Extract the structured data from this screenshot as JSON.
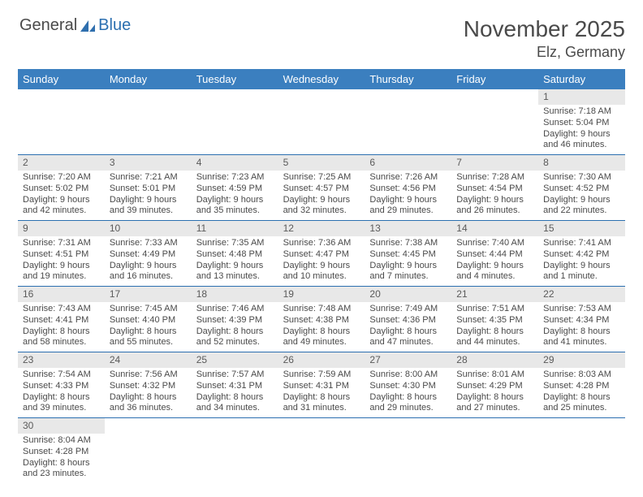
{
  "logo": {
    "text1": "General",
    "text2": "Blue"
  },
  "title": "November 2025",
  "location": "Elz, Germany",
  "dayNames": [
    "Sunday",
    "Monday",
    "Tuesday",
    "Wednesday",
    "Thursday",
    "Friday",
    "Saturday"
  ],
  "colors": {
    "headerBg": "#3b7fbf",
    "dayNumBg": "#e8e8e8",
    "rule": "#2b6fb0"
  },
  "weeks": [
    [
      null,
      null,
      null,
      null,
      null,
      null,
      {
        "n": "1",
        "sr": "Sunrise: 7:18 AM",
        "ss": "Sunset: 5:04 PM",
        "d1": "Daylight: 9 hours",
        "d2": "and 46 minutes."
      }
    ],
    [
      {
        "n": "2",
        "sr": "Sunrise: 7:20 AM",
        "ss": "Sunset: 5:02 PM",
        "d1": "Daylight: 9 hours",
        "d2": "and 42 minutes."
      },
      {
        "n": "3",
        "sr": "Sunrise: 7:21 AM",
        "ss": "Sunset: 5:01 PM",
        "d1": "Daylight: 9 hours",
        "d2": "and 39 minutes."
      },
      {
        "n": "4",
        "sr": "Sunrise: 7:23 AM",
        "ss": "Sunset: 4:59 PM",
        "d1": "Daylight: 9 hours",
        "d2": "and 35 minutes."
      },
      {
        "n": "5",
        "sr": "Sunrise: 7:25 AM",
        "ss": "Sunset: 4:57 PM",
        "d1": "Daylight: 9 hours",
        "d2": "and 32 minutes."
      },
      {
        "n": "6",
        "sr": "Sunrise: 7:26 AM",
        "ss": "Sunset: 4:56 PM",
        "d1": "Daylight: 9 hours",
        "d2": "and 29 minutes."
      },
      {
        "n": "7",
        "sr": "Sunrise: 7:28 AM",
        "ss": "Sunset: 4:54 PM",
        "d1": "Daylight: 9 hours",
        "d2": "and 26 minutes."
      },
      {
        "n": "8",
        "sr": "Sunrise: 7:30 AM",
        "ss": "Sunset: 4:52 PM",
        "d1": "Daylight: 9 hours",
        "d2": "and 22 minutes."
      }
    ],
    [
      {
        "n": "9",
        "sr": "Sunrise: 7:31 AM",
        "ss": "Sunset: 4:51 PM",
        "d1": "Daylight: 9 hours",
        "d2": "and 19 minutes."
      },
      {
        "n": "10",
        "sr": "Sunrise: 7:33 AM",
        "ss": "Sunset: 4:49 PM",
        "d1": "Daylight: 9 hours",
        "d2": "and 16 minutes."
      },
      {
        "n": "11",
        "sr": "Sunrise: 7:35 AM",
        "ss": "Sunset: 4:48 PM",
        "d1": "Daylight: 9 hours",
        "d2": "and 13 minutes."
      },
      {
        "n": "12",
        "sr": "Sunrise: 7:36 AM",
        "ss": "Sunset: 4:47 PM",
        "d1": "Daylight: 9 hours",
        "d2": "and 10 minutes."
      },
      {
        "n": "13",
        "sr": "Sunrise: 7:38 AM",
        "ss": "Sunset: 4:45 PM",
        "d1": "Daylight: 9 hours",
        "d2": "and 7 minutes."
      },
      {
        "n": "14",
        "sr": "Sunrise: 7:40 AM",
        "ss": "Sunset: 4:44 PM",
        "d1": "Daylight: 9 hours",
        "d2": "and 4 minutes."
      },
      {
        "n": "15",
        "sr": "Sunrise: 7:41 AM",
        "ss": "Sunset: 4:42 PM",
        "d1": "Daylight: 9 hours",
        "d2": "and 1 minute."
      }
    ],
    [
      {
        "n": "16",
        "sr": "Sunrise: 7:43 AM",
        "ss": "Sunset: 4:41 PM",
        "d1": "Daylight: 8 hours",
        "d2": "and 58 minutes."
      },
      {
        "n": "17",
        "sr": "Sunrise: 7:45 AM",
        "ss": "Sunset: 4:40 PM",
        "d1": "Daylight: 8 hours",
        "d2": "and 55 minutes."
      },
      {
        "n": "18",
        "sr": "Sunrise: 7:46 AM",
        "ss": "Sunset: 4:39 PM",
        "d1": "Daylight: 8 hours",
        "d2": "and 52 minutes."
      },
      {
        "n": "19",
        "sr": "Sunrise: 7:48 AM",
        "ss": "Sunset: 4:38 PM",
        "d1": "Daylight: 8 hours",
        "d2": "and 49 minutes."
      },
      {
        "n": "20",
        "sr": "Sunrise: 7:49 AM",
        "ss": "Sunset: 4:36 PM",
        "d1": "Daylight: 8 hours",
        "d2": "and 47 minutes."
      },
      {
        "n": "21",
        "sr": "Sunrise: 7:51 AM",
        "ss": "Sunset: 4:35 PM",
        "d1": "Daylight: 8 hours",
        "d2": "and 44 minutes."
      },
      {
        "n": "22",
        "sr": "Sunrise: 7:53 AM",
        "ss": "Sunset: 4:34 PM",
        "d1": "Daylight: 8 hours",
        "d2": "and 41 minutes."
      }
    ],
    [
      {
        "n": "23",
        "sr": "Sunrise: 7:54 AM",
        "ss": "Sunset: 4:33 PM",
        "d1": "Daylight: 8 hours",
        "d2": "and 39 minutes."
      },
      {
        "n": "24",
        "sr": "Sunrise: 7:56 AM",
        "ss": "Sunset: 4:32 PM",
        "d1": "Daylight: 8 hours",
        "d2": "and 36 minutes."
      },
      {
        "n": "25",
        "sr": "Sunrise: 7:57 AM",
        "ss": "Sunset: 4:31 PM",
        "d1": "Daylight: 8 hours",
        "d2": "and 34 minutes."
      },
      {
        "n": "26",
        "sr": "Sunrise: 7:59 AM",
        "ss": "Sunset: 4:31 PM",
        "d1": "Daylight: 8 hours",
        "d2": "and 31 minutes."
      },
      {
        "n": "27",
        "sr": "Sunrise: 8:00 AM",
        "ss": "Sunset: 4:30 PM",
        "d1": "Daylight: 8 hours",
        "d2": "and 29 minutes."
      },
      {
        "n": "28",
        "sr": "Sunrise: 8:01 AM",
        "ss": "Sunset: 4:29 PM",
        "d1": "Daylight: 8 hours",
        "d2": "and 27 minutes."
      },
      {
        "n": "29",
        "sr": "Sunrise: 8:03 AM",
        "ss": "Sunset: 4:28 PM",
        "d1": "Daylight: 8 hours",
        "d2": "and 25 minutes."
      }
    ],
    [
      {
        "n": "30",
        "sr": "Sunrise: 8:04 AM",
        "ss": "Sunset: 4:28 PM",
        "d1": "Daylight: 8 hours",
        "d2": "and 23 minutes."
      },
      null,
      null,
      null,
      null,
      null,
      null
    ]
  ]
}
